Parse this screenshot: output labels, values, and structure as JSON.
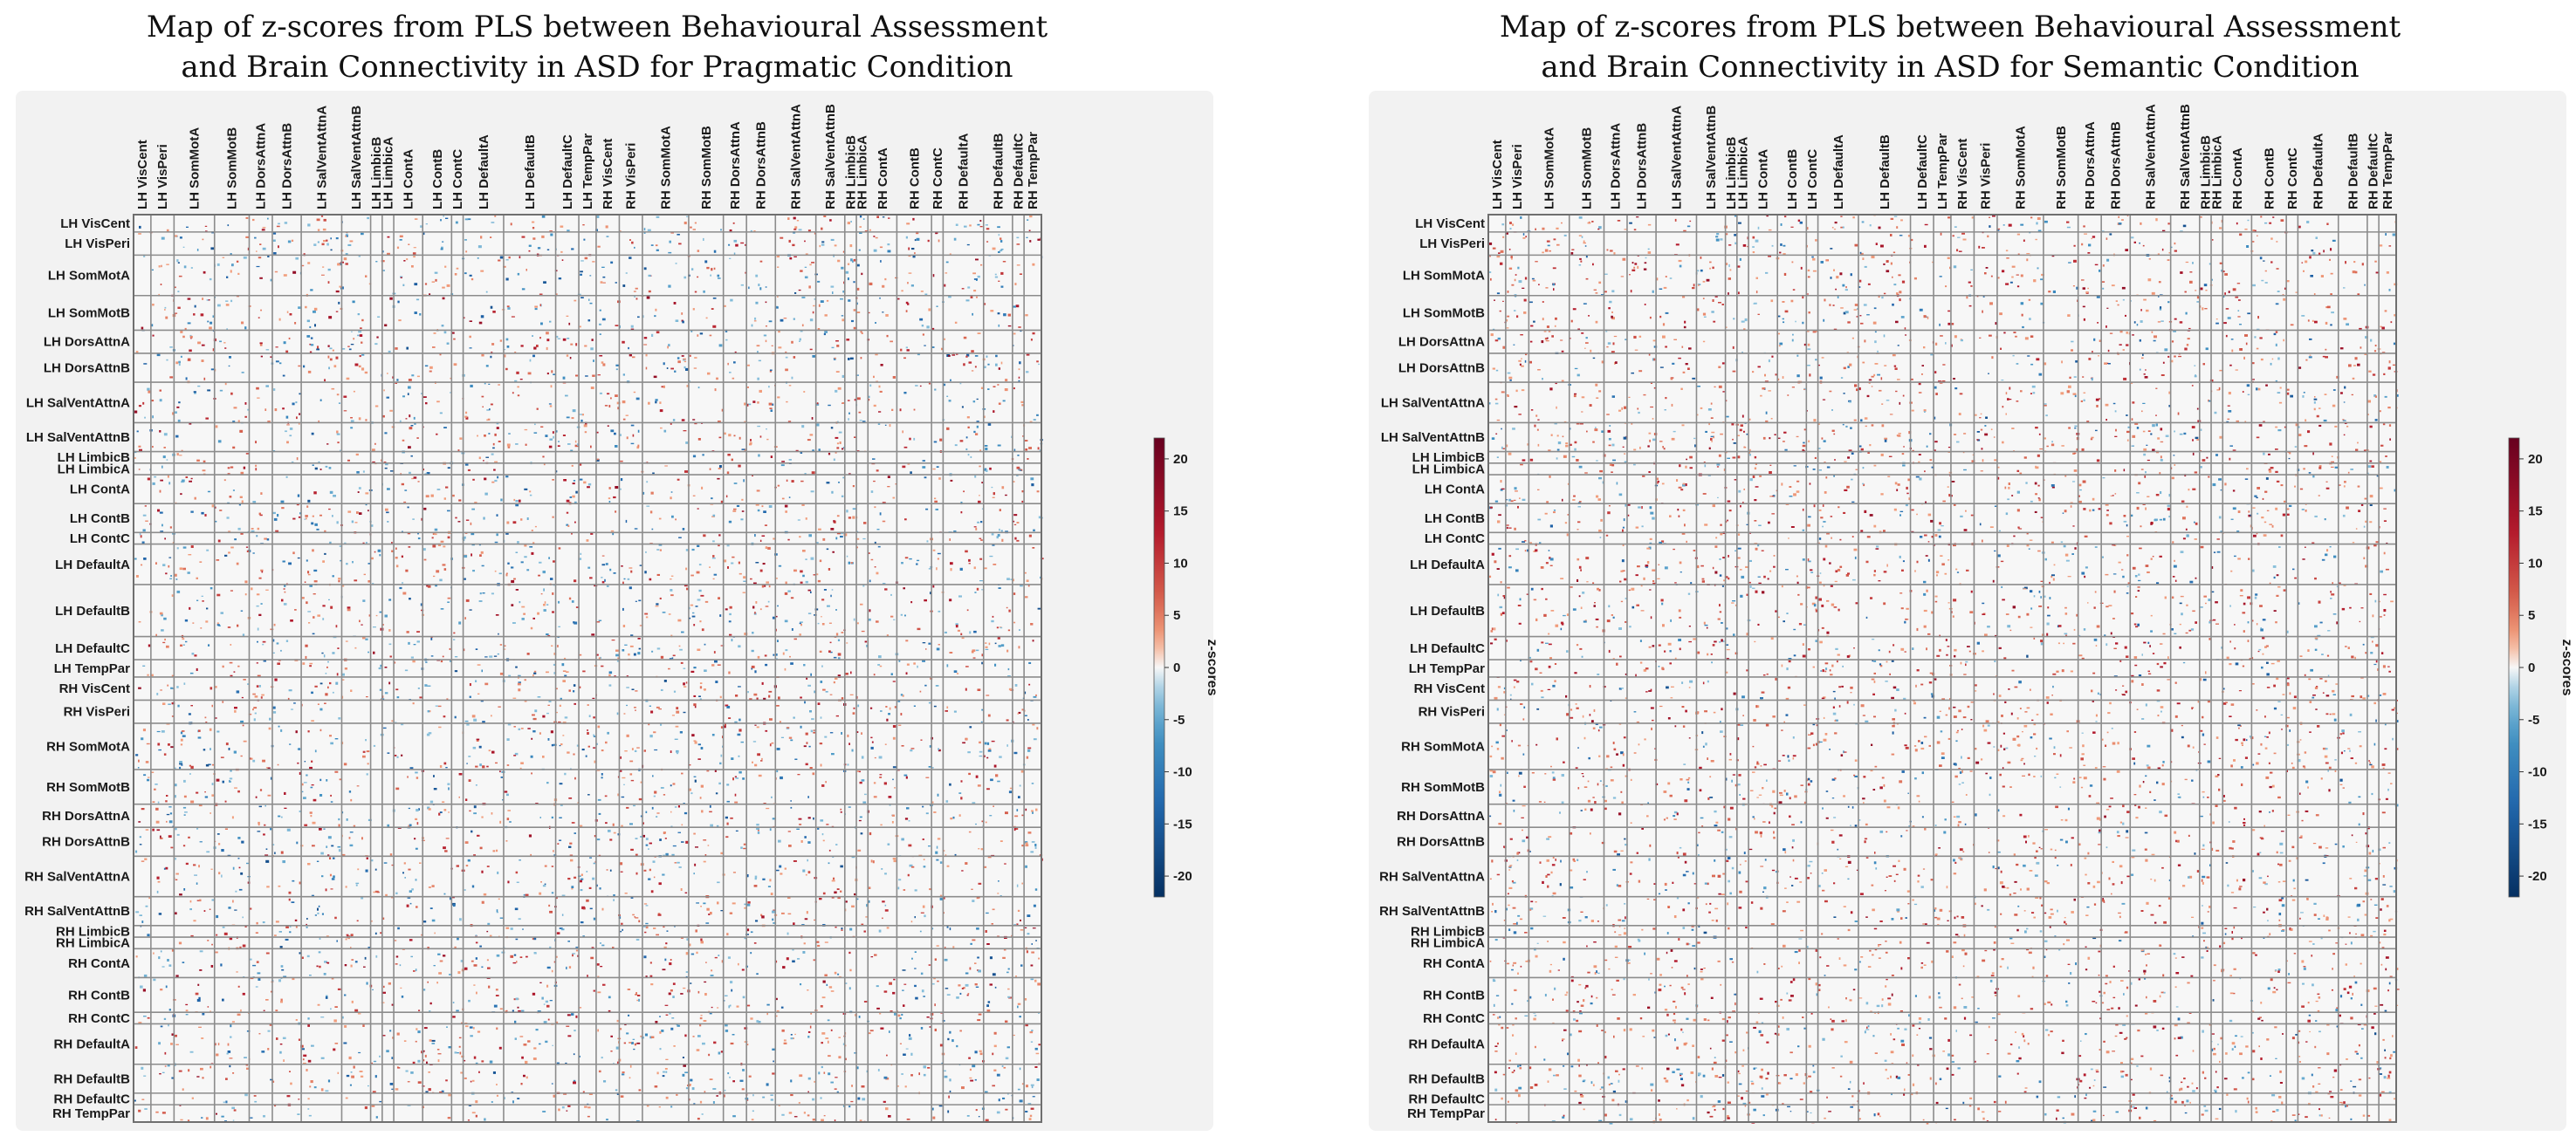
{
  "chart_data": [
    {
      "type": "heatmap",
      "title": "Map of z-scores from PLS between Behavioural Assessment and Brain Connectivity in ASD for Pragmatic Condition",
      "title_lines": [
        "Map of z-scores from PLS between Behavioural Assessment",
        "and Brain Connectivity in ASD for Pragmatic Condition"
      ],
      "row_labels": [
        "LH VisCent",
        "LH VisPeri",
        "LH SomMotA",
        "LH SomMotB",
        "LH DorsAttnA",
        "LH DorsAttnB",
        "LH SalVentAttnA",
        "LH SalVentAttnB",
        "LH LimbicB",
        "LH LimbicA",
        "LH ContA",
        "LH ContB",
        "LH ContC",
        "LH DefaultA",
        "LH DefaultB",
        "LH DefaultC",
        "LH TempPar",
        "RH VisCent",
        "RH VisPeri",
        "RH SomMotA",
        "RH SomMotB",
        "RH DorsAttnA",
        "RH DorsAttnB",
        "RH SalVentAttnA",
        "RH SalVentAttnB",
        "RH LimbicB",
        "RH LimbicA",
        "RH ContA",
        "RH ContB",
        "RH ContC",
        "RH DefaultA",
        "RH DefaultB",
        "RH DefaultC",
        "RH TempPar"
      ],
      "col_labels": [
        "LH VisCent",
        "LH VisPeri",
        "LH SomMotA",
        "LH SomMotB",
        "LH DorsAttnA",
        "LH DorsAttnB",
        "LH SalVentAttnA",
        "LH SalVentAttnB",
        "LH LimbicB",
        "LH LimbicA",
        "LH ContA",
        "LH ContB",
        "LH ContC",
        "LH DefaultA",
        "LH DefaultB",
        "LH DefaultC",
        "LH TempPar",
        "RH VisCent",
        "RH VisPeri",
        "RH SomMotA",
        "RH SomMotB",
        "RH DorsAttnA",
        "RH DorsAttnB",
        "RH SalVentAttnA",
        "RH SalVentAttnB",
        "RH LimbicB",
        "RH LimbicA",
        "RH ContA",
        "RH ContB",
        "RH ContC",
        "RH DefaultA",
        "RH DefaultB",
        "RH DefaultC",
        "RH TempPar"
      ],
      "network_sizes": [
        3,
        4,
        7,
        6,
        4,
        5,
        7,
        5,
        2,
        2,
        5,
        5,
        2,
        7,
        9,
        4,
        3,
        4,
        4,
        8,
        6,
        4,
        5,
        7,
        5,
        2,
        2,
        5,
        6,
        2,
        7,
        5,
        2,
        3
      ],
      "colorbar": {
        "label": "z-scores",
        "range": [
          -22,
          22
        ],
        "ticks": [
          20,
          15,
          10,
          5,
          0,
          -5,
          -10,
          -15,
          -20
        ],
        "colormap": "diverging blue-white-red"
      },
      "dominant_sign": "mixed"
    },
    {
      "type": "heatmap",
      "title": "Map of z-scores from PLS between Behavioural Assessment and Brain Connectivity in ASD for Semantic Condition",
      "title_lines": [
        "Map of z-scores from PLS between Behavioural Assessment",
        "and Brain Connectivity in ASD for Semantic Condition"
      ],
      "row_labels": [
        "LH VisCent",
        "LH VisPeri",
        "LH SomMotA",
        "LH SomMotB",
        "LH DorsAttnA",
        "LH DorsAttnB",
        "LH SalVentAttnA",
        "LH SalVentAttnB",
        "LH LimbicB",
        "LH LimbicA",
        "LH ContA",
        "LH ContB",
        "LH ContC",
        "LH DefaultA",
        "LH DefaultB",
        "LH DefaultC",
        "LH TempPar",
        "RH VisCent",
        "RH VisPeri",
        "RH SomMotA",
        "RH SomMotB",
        "RH DorsAttnA",
        "RH DorsAttnB",
        "RH SalVentAttnA",
        "RH SalVentAttnB",
        "RH LimbicB",
        "RH LimbicA",
        "RH ContA",
        "RH ContB",
        "RH ContC",
        "RH DefaultA",
        "RH DefaultB",
        "RH DefaultC",
        "RH TempPar"
      ],
      "col_labels": [
        "LH VisCent",
        "LH VisPeri",
        "LH SomMotA",
        "LH SomMotB",
        "LH DorsAttnA",
        "LH DorsAttnB",
        "LH SalVentAttnA",
        "LH SalVentAttnB",
        "LH LimbicB",
        "LH LimbicA",
        "LH ContA",
        "LH ContB",
        "LH ContC",
        "LH DefaultA",
        "LH DefaultB",
        "LH DefaultC",
        "LH TempPar",
        "RH VisCent",
        "RH VisPeri",
        "RH SomMotA",
        "RH SomMotB",
        "RH DorsAttnA",
        "RH DorsAttnB",
        "RH SalVentAttnA",
        "RH SalVentAttnB",
        "RH LimbicB",
        "RH LimbicA",
        "RH ContA",
        "RH ContB",
        "RH ContC",
        "RH DefaultA",
        "RH DefaultB",
        "RH DefaultC",
        "RH TempPar"
      ],
      "network_sizes": [
        3,
        4,
        7,
        6,
        4,
        5,
        7,
        5,
        2,
        2,
        5,
        5,
        2,
        7,
        9,
        4,
        3,
        4,
        4,
        8,
        6,
        4,
        5,
        7,
        5,
        2,
        2,
        5,
        6,
        2,
        7,
        5,
        2,
        3
      ],
      "colorbar": {
        "label": "z-scores",
        "range": [
          -22,
          22
        ],
        "ticks": [
          20,
          15,
          10,
          5,
          0,
          -5,
          -10,
          -15,
          -20
        ],
        "colormap": "diverging blue-white-red"
      },
      "dominant_sign": "positive"
    }
  ],
  "colors": {
    "positive_strong": "#67001f",
    "positive_mid": "#d6604d",
    "positive_light": "#f4a582",
    "neutral": "#f7f7f7",
    "negative_light": "#92c5de",
    "negative_mid": "#4393c3",
    "negative_strong": "#053061"
  }
}
